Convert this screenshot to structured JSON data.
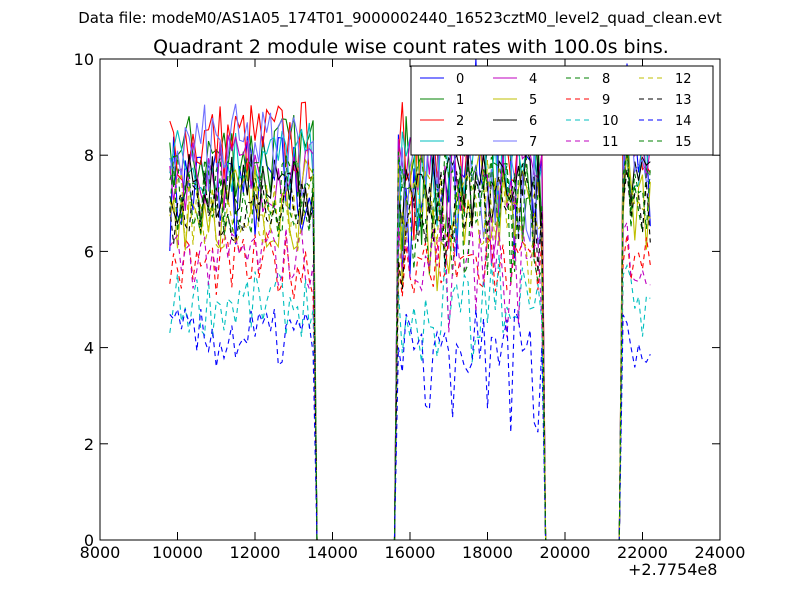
{
  "suptitle": "Data file: modeM0/AS1A05_174T01_9000002440_16523cztM0_level2_quad_clean.evt",
  "chart_data": {
    "type": "line",
    "title": "Quadrant 2 module wise count rates with 100.0s bins.",
    "xlabel": "",
    "ylabel": "",
    "xlim": [
      8000,
      24000
    ],
    "ylim": [
      0,
      10
    ],
    "x_offset_label": "+2.7754e8",
    "x_ticks": [
      "8000",
      "10000",
      "12000",
      "14000",
      "16000",
      "18000",
      "20000",
      "22000",
      "24000"
    ],
    "y_ticks": [
      "0",
      "2",
      "4",
      "6",
      "8",
      "10"
    ],
    "grid": false,
    "legend_placement": "top-right",
    "segments": [
      {
        "start": 9800,
        "end": 13500
      },
      {
        "start": 15700,
        "end": 19400
      },
      {
        "start": 21500,
        "end": 22200
      }
    ],
    "gaps": [
      {
        "start": 13600,
        "end": 15600
      },
      {
        "start": 19500,
        "end": 21400
      }
    ],
    "series": [
      {
        "name": "0",
        "color": "#0000ff",
        "dash": "solid",
        "base": 7.3,
        "vmin": 5.3,
        "vmax": 10.0
      },
      {
        "name": "1",
        "color": "#008000",
        "dash": "solid",
        "base": 8.0,
        "vmin": 6.0,
        "vmax": 9.3
      },
      {
        "name": "2",
        "color": "#ff0000",
        "dash": "solid",
        "base": 8.3,
        "vmin": 6.2,
        "vmax": 9.4
      },
      {
        "name": "3",
        "color": "#00bfbf",
        "dash": "solid",
        "base": 7.9,
        "vmin": 6.0,
        "vmax": 9.0
      },
      {
        "name": "4",
        "color": "#bf00bf",
        "dash": "solid",
        "base": 7.7,
        "vmin": 5.6,
        "vmax": 8.8
      },
      {
        "name": "5",
        "color": "#bfbf00",
        "dash": "solid",
        "base": 7.0,
        "vmin": 5.0,
        "vmax": 8.5
      },
      {
        "name": "6",
        "color": "#000000",
        "dash": "solid",
        "base": 7.3,
        "vmin": 5.6,
        "vmax": 8.3
      },
      {
        "name": "7",
        "color": "#7070ff",
        "dash": "solid",
        "base": 8.1,
        "vmin": 6.0,
        "vmax": 9.6
      },
      {
        "name": "8",
        "color": "#008000",
        "dash": "dashed",
        "base": 7.2,
        "vmin": 5.4,
        "vmax": 8.4
      },
      {
        "name": "9",
        "color": "#ff0000",
        "dash": "dashed",
        "base": 5.7,
        "vmin": 4.0,
        "vmax": 6.5
      },
      {
        "name": "10",
        "color": "#00bfbf",
        "dash": "dashed",
        "base": 4.9,
        "vmin": 3.5,
        "vmax": 6.0
      },
      {
        "name": "11",
        "color": "#bf00bf",
        "dash": "dashed",
        "base": 5.9,
        "vmin": 4.2,
        "vmax": 6.8
      },
      {
        "name": "12",
        "color": "#bfbf00",
        "dash": "dashed",
        "base": 6.8,
        "vmin": 5.0,
        "vmax": 8.0
      },
      {
        "name": "13",
        "color": "#000000",
        "dash": "dashed",
        "base": 6.9,
        "vmin": 5.2,
        "vmax": 8.0
      },
      {
        "name": "14",
        "color": "#0000ff",
        "dash": "dashed",
        "base": 4.2,
        "vmin": 2.2,
        "vmax": 4.8
      },
      {
        "name": "15",
        "color": "#008000",
        "dash": "dashed",
        "base": 7.1,
        "vmin": 5.3,
        "vmax": 8.3
      }
    ]
  }
}
